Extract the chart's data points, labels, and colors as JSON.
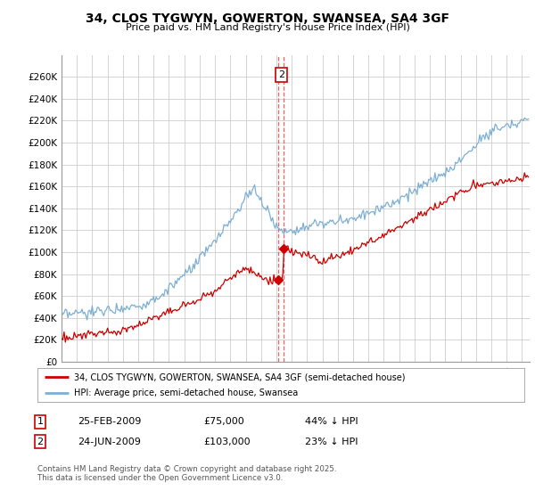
{
  "title": "34, CLOS TYGWYN, GOWERTON, SWANSEA, SA4 3GF",
  "subtitle": "Price paid vs. HM Land Registry's House Price Index (HPI)",
  "legend_label_red": "34, CLOS TYGWYN, GOWERTON, SWANSEA, SA4 3GF (semi-detached house)",
  "legend_label_blue": "HPI: Average price, semi-detached house, Swansea",
  "transaction1_date": "25-FEB-2009",
  "transaction1_price": "£75,000",
  "transaction1_hpi": "44% ↓ HPI",
  "transaction2_date": "24-JUN-2009",
  "transaction2_price": "£103,000",
  "transaction2_hpi": "23% ↓ HPI",
  "footer": "Contains HM Land Registry data © Crown copyright and database right 2025.\nThis data is licensed under the Open Government Licence v3.0.",
  "ylim": [
    0,
    280000
  ],
  "yticks": [
    0,
    20000,
    40000,
    60000,
    80000,
    100000,
    120000,
    140000,
    160000,
    180000,
    200000,
    220000,
    240000,
    260000
  ],
  "ytick_labels": [
    "£0",
    "£20K",
    "£40K",
    "£60K",
    "£80K",
    "£100K",
    "£120K",
    "£140K",
    "£160K",
    "£180K",
    "£200K",
    "£220K",
    "£240K",
    "£260K"
  ],
  "color_red": "#cc0000",
  "color_blue": "#7bafd4",
  "color_grid": "#cccccc",
  "color_bg": "#ffffff",
  "t1_x": 2009.12,
  "t1_y_red": 75000,
  "t2_x": 2009.48,
  "t2_y_red": 103000,
  "xmin": 1995.0,
  "xmax": 2025.5
}
